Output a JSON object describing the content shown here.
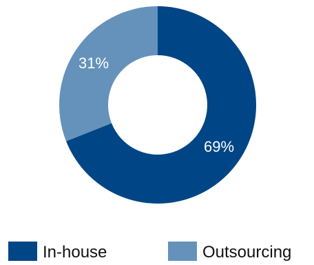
{
  "chart_data": {
    "type": "pie",
    "title": "",
    "categories": [
      "In-house",
      "Outsourcing"
    ],
    "values": [
      69,
      31
    ],
    "value_labels": [
      "69%",
      "31%"
    ],
    "colors": [
      "#004585",
      "#6592bb"
    ],
    "style": "donut",
    "legend_placement": "bottom"
  }
}
